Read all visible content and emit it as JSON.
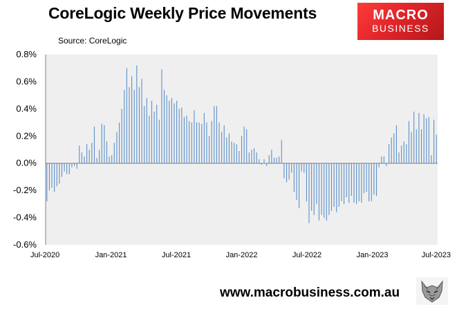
{
  "header": {
    "title": "CoreLogic Weekly Price Movements",
    "source": "Source: CoreLogic"
  },
  "logo": {
    "line1": "MACRO",
    "line2": "BUSINESS"
  },
  "footer": {
    "url": "www.macrobusiness.com.au"
  },
  "icons": {
    "logo_mark": "wolf-head-icon"
  },
  "colors": {
    "bar": "#5b8fc9",
    "plot_bg": "#efefef",
    "logo_red": "#e2262b"
  },
  "chart_data": {
    "type": "bar",
    "title": "CoreLogic Weekly Price Movements",
    "source": "Source: CoreLogic",
    "ylim": [
      -0.6,
      0.8
    ],
    "yticks": [
      "-0.6%",
      "-0.4%",
      "-0.2%",
      "0.0%",
      "0.2%",
      "0.4%",
      "0.6%",
      "0.8%"
    ],
    "xticks": [
      "Jul-2020",
      "Jan-2021",
      "Jul-2021",
      "Jan-2022",
      "Jul-2022",
      "Jan-2023",
      "Jul-2023"
    ],
    "grid": false,
    "unit": "% per week",
    "values": [
      -0.28,
      -0.2,
      -0.18,
      -0.21,
      -0.17,
      -0.15,
      -0.1,
      -0.06,
      -0.08,
      -0.08,
      -0.03,
      -0.02,
      -0.04,
      0.13,
      0.08,
      0.05,
      0.14,
      0.1,
      0.15,
      0.27,
      0.04,
      0.1,
      0.29,
      0.28,
      0.16,
      0.05,
      0.06,
      0.15,
      0.23,
      0.3,
      0.4,
      0.54,
      0.7,
      0.56,
      0.64,
      0.54,
      0.72,
      0.56,
      0.62,
      0.42,
      0.48,
      0.35,
      0.46,
      0.38,
      0.43,
      0.32,
      0.69,
      0.54,
      0.5,
      0.46,
      0.48,
      0.44,
      0.46,
      0.4,
      0.41,
      0.34,
      0.35,
      0.31,
      0.3,
      0.39,
      0.3,
      0.3,
      0.29,
      0.37,
      0.3,
      0.2,
      0.31,
      0.42,
      0.42,
      0.3,
      0.23,
      0.28,
      0.19,
      0.22,
      0.16,
      0.15,
      0.14,
      0.09,
      0.2,
      0.27,
      0.25,
      0.08,
      0.1,
      0.11,
      0.08,
      0.03,
      -0.01,
      0.03,
      -0.02,
      0.06,
      0.1,
      0.04,
      0.04,
      0.05,
      0.17,
      -0.11,
      -0.14,
      -0.12,
      -0.07,
      -0.21,
      -0.27,
      -0.33,
      -0.06,
      -0.07,
      -0.28,
      -0.44,
      -0.35,
      -0.38,
      -0.3,
      -0.42,
      -0.38,
      -0.4,
      -0.42,
      -0.38,
      -0.35,
      -0.32,
      -0.36,
      -0.32,
      -0.28,
      -0.3,
      -0.25,
      -0.29,
      -0.24,
      -0.29,
      -0.3,
      -0.28,
      -0.29,
      -0.22,
      -0.21,
      -0.28,
      -0.28,
      -0.23,
      -0.24,
      -0.03,
      0.05,
      0.05,
      -0.02,
      0.14,
      0.19,
      0.22,
      0.28,
      0.08,
      0.13,
      0.16,
      0.14,
      0.31,
      0.23,
      0.38,
      0.25,
      0.37,
      0.25,
      0.36,
      0.33,
      0.34,
      0.06,
      0.32,
      0.21
    ]
  }
}
